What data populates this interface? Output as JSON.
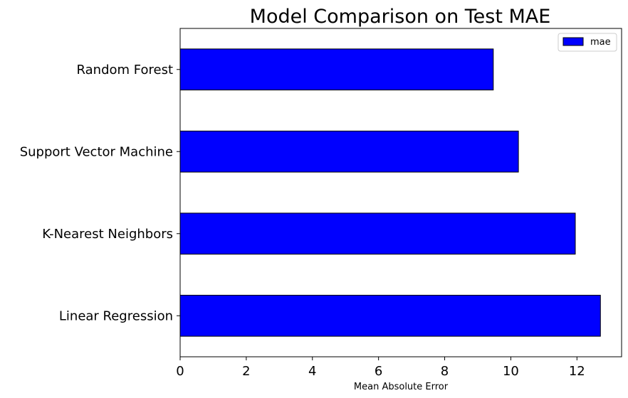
{
  "chart_data": {
    "type": "bar",
    "orientation": "horizontal",
    "title": "Model Comparison on Test MAE",
    "xlabel": "Mean Absolute Error",
    "ylabel": "",
    "categories": [
      "Random Forest",
      "Support Vector Machine",
      "K-Nearest Neighbors",
      "Linear Regression"
    ],
    "series": [
      {
        "name": "mae",
        "values": [
          9.47,
          10.23,
          11.95,
          12.71
        ],
        "color": "#0000ff",
        "edgecolor": "#000000"
      }
    ],
    "xlim": [
      0,
      13.35
    ],
    "xticks": [
      0,
      2,
      4,
      6,
      8,
      10,
      12
    ],
    "xtick_labels": [
      "0",
      "2",
      "4",
      "6",
      "8",
      "10",
      "12"
    ],
    "grid": false,
    "legend_position": "top-right"
  }
}
